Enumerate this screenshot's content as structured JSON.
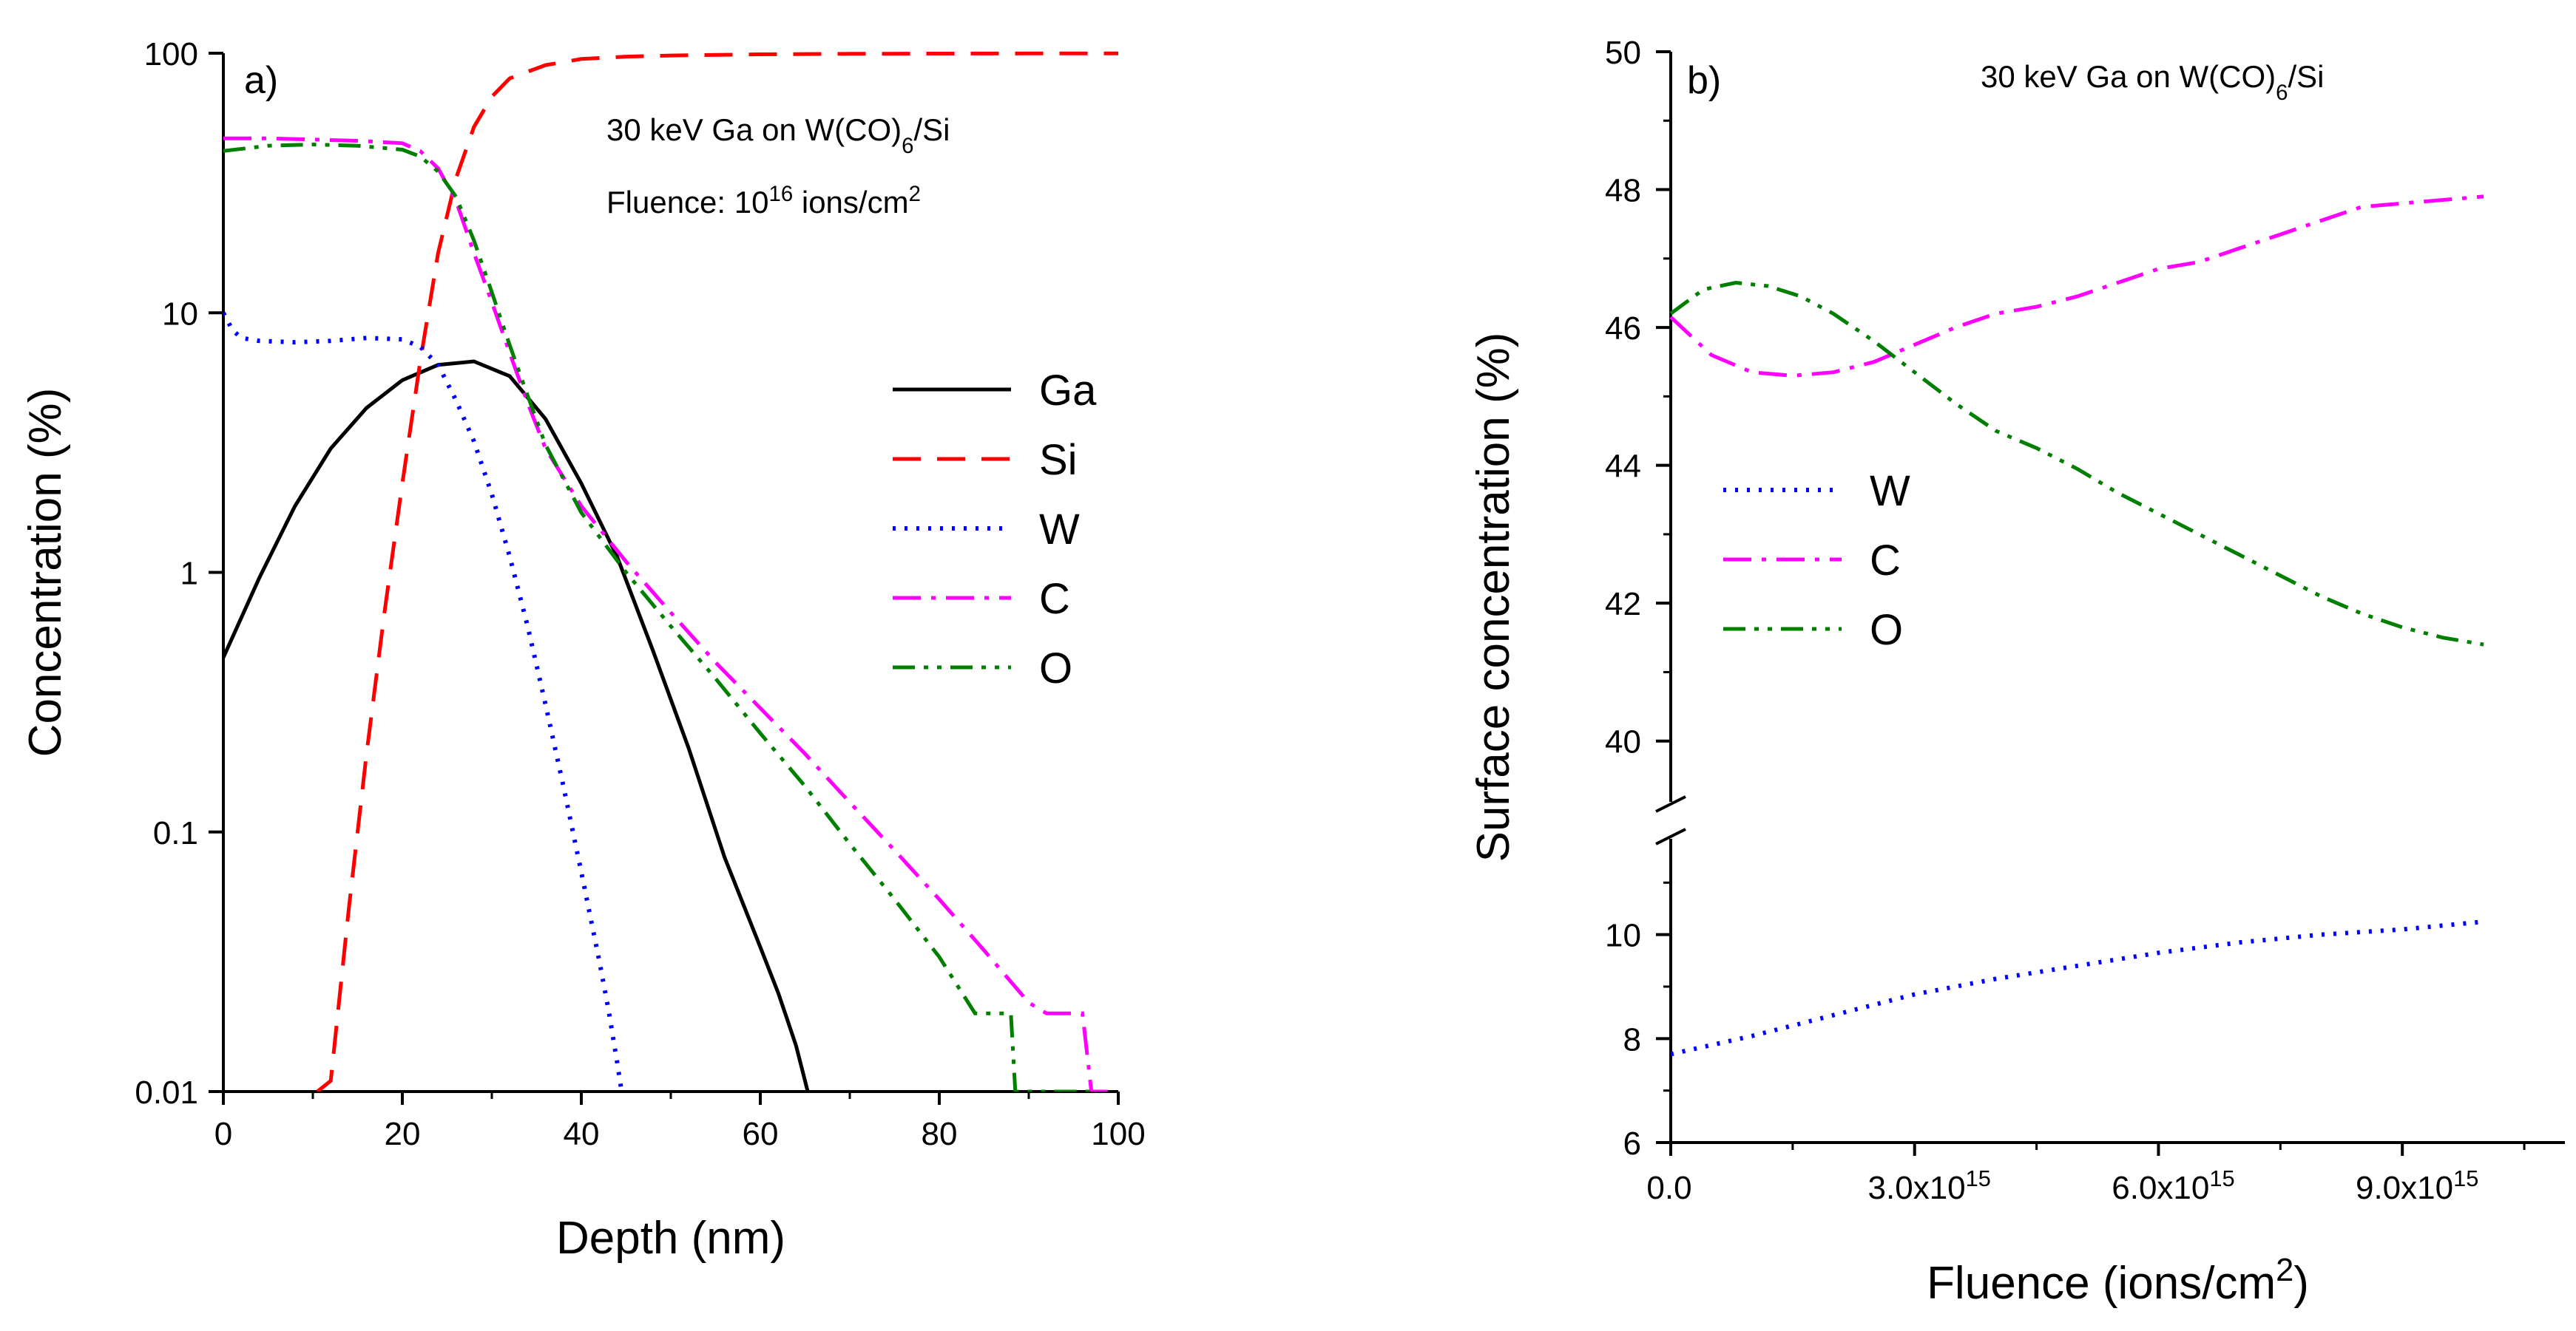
{
  "chart_data": [
    {
      "type": "line",
      "panel_label": "a)",
      "title": "",
      "annotations": [
        {
          "text": "30 keV Ga on W(CO)",
          "sub": "6",
          "tail": "/Si"
        },
        {
          "text": "Fluence: 10",
          "sup": "16",
          "tail": " ions/cm",
          "sup2": "2"
        }
      ],
      "xlabel": "Depth (nm)",
      "ylabel": "Concentration (%)",
      "xlim": [
        0,
        100
      ],
      "ylim": [
        0.01,
        100
      ],
      "yscale": "log",
      "xticks": [
        0,
        20,
        40,
        60,
        80,
        100
      ],
      "xtick_labels": [
        "0",
        "20",
        "40",
        "60",
        "80",
        "100"
      ],
      "yticks": [
        0.01,
        0.1,
        1,
        10,
        100
      ],
      "ytick_labels": [
        "0.01",
        "0.1",
        "1",
        "10",
        "100"
      ],
      "legend_position": "center-right",
      "series": [
        {
          "name": "Ga",
          "color": "#000000",
          "dash": "solid",
          "x": [
            0,
            4,
            8,
            12,
            16,
            20,
            24,
            28,
            32,
            36,
            40,
            44,
            48,
            52,
            56,
            60,
            62,
            63,
            64,
            65,
            65.3
          ],
          "y": [
            0.47,
            0.95,
            1.8,
            3.0,
            4.3,
            5.5,
            6.3,
            6.5,
            5.7,
            3.9,
            2.2,
            1.15,
            0.5,
            0.21,
            0.08,
            0.036,
            0.024,
            0.019,
            0.015,
            0.011,
            0.01
          ]
        },
        {
          "name": "Si",
          "color": "#ff0000",
          "dash": "dashed",
          "x": [
            10.5,
            12,
            14,
            16,
            18,
            20,
            22,
            24,
            26,
            28,
            30,
            32,
            36,
            40,
            45,
            50,
            60,
            70,
            80,
            90,
            100
          ],
          "y": [
            0.01,
            0.011,
            0.05,
            0.2,
            0.7,
            2.2,
            6.5,
            17,
            33,
            52,
            68,
            80,
            90,
            95,
            97,
            98,
            99,
            99.5,
            99.7,
            99.8,
            99.9
          ]
        },
        {
          "name": "W",
          "color": "#0000ff",
          "dash": "dotted",
          "x": [
            0,
            1,
            2,
            4,
            8,
            12,
            16,
            20,
            22,
            24,
            26,
            28,
            30,
            32,
            34,
            36,
            38,
            40,
            42,
            43,
            44,
            44.5
          ],
          "y": [
            10,
            8.6,
            8.0,
            7.8,
            7.7,
            7.8,
            8.0,
            7.9,
            7.4,
            6.3,
            4.6,
            3.2,
            2.0,
            1.15,
            0.62,
            0.31,
            0.15,
            0.07,
            0.032,
            0.021,
            0.013,
            0.01
          ]
        },
        {
          "name": "C",
          "color": "#ff00ff",
          "dash": "dashdot",
          "x": [
            0,
            5,
            10,
            15,
            20,
            22,
            24,
            26,
            28,
            30,
            32,
            34,
            36,
            40,
            45,
            50,
            55,
            60,
            65,
            70,
            75,
            80,
            85,
            90,
            92,
            96,
            97,
            99
          ],
          "y": [
            47,
            47,
            46.5,
            46,
            45,
            42,
            36,
            27,
            17,
            11,
            7,
            4.5,
            3.0,
            1.8,
            1.1,
            0.7,
            0.45,
            0.3,
            0.2,
            0.13,
            0.085,
            0.055,
            0.035,
            0.022,
            0.02,
            0.02,
            0.01,
            0.01
          ]
        },
        {
          "name": "O",
          "color": "#007f00",
          "dash": "dashdotdot",
          "x": [
            0,
            5,
            10,
            15,
            20,
            22,
            24,
            26,
            28,
            30,
            32,
            34,
            36,
            40,
            45,
            50,
            55,
            60,
            65,
            70,
            75,
            80,
            84,
            86,
            88,
            88.5,
            97
          ],
          "y": [
            42,
            44,
            44.5,
            44,
            42.5,
            40,
            35,
            28,
            19,
            12,
            7.5,
            4.8,
            3.1,
            1.7,
            1.0,
            0.62,
            0.39,
            0.24,
            0.15,
            0.09,
            0.055,
            0.033,
            0.02,
            0.02,
            0.02,
            0.01,
            0.01
          ]
        }
      ]
    },
    {
      "type": "line",
      "panel_label": "b)",
      "title": "",
      "annotations": [
        {
          "text": "30 keV Ga on W(CO)",
          "sub": "6",
          "tail": "/Si"
        }
      ],
      "xlabel": "Fluence (ions/cm",
      "xlabel_sup": "2",
      "xlabel_tail": ")",
      "ylabel": "Surface concentration (%)",
      "xlim": [
        0,
        1.1e+16
      ],
      "xticks": [
        0,
        3000000000000000.0,
        6000000000000000.0,
        9000000000000000.0
      ],
      "xtick_labels": [
        {
          "text": "0.0",
          "sup": ""
        },
        {
          "text": "3.0x10",
          "sup": "15"
        },
        {
          "text": "6.0x10",
          "sup": "15"
        },
        {
          "text": "9.0x10",
          "sup": "15"
        }
      ],
      "y_axis_break": true,
      "ylim_upper": [
        39,
        50
      ],
      "ylim_lower": [
        6,
        12
      ],
      "yticks_upper": [
        40,
        42,
        44,
        46,
        48,
        50
      ],
      "ytick_labels_upper": [
        "40",
        "42",
        "44",
        "46",
        "48",
        "50"
      ],
      "yticks_lower": [
        6,
        8,
        10
      ],
      "ytick_labels_lower": [
        "6",
        "8",
        "10"
      ],
      "legend_position": "middle-left",
      "series": [
        {
          "name": "W",
          "color": "#0000ff",
          "dash": "dotted",
          "x": [
            0,
            1000000000000000.0,
            2000000000000000.0,
            3000000000000000.0,
            4000000000000000.0,
            5000000000000000.0,
            6000000000000000.0,
            7000000000000000.0,
            8000000000000000.0,
            9000000000000000.0,
            1e+16
          ],
          "y": [
            7.7,
            8.05,
            8.45,
            8.85,
            9.15,
            9.4,
            9.65,
            9.85,
            10.0,
            10.1,
            10.25
          ]
        },
        {
          "name": "C",
          "color": "#ff00ff",
          "dash": "dashdot",
          "x": [
            0,
            500000000000000.0,
            1000000000000000.0,
            1500000000000000.0,
            2000000000000000.0,
            2500000000000000.0,
            3000000000000000.0,
            3500000000000000.0,
            4000000000000000.0,
            4500000000000000.0,
            5000000000000000.0,
            5500000000000000.0,
            6000000000000000.0,
            6500000000000000.0,
            7000000000000000.0,
            7500000000000000.0,
            8000000000000000.0,
            8500000000000000.0,
            9000000000000000.0,
            9500000000000000.0,
            1e+16
          ],
          "y": [
            46.15,
            45.6,
            45.35,
            45.3,
            45.35,
            45.5,
            45.75,
            46.0,
            46.2,
            46.3,
            46.45,
            46.65,
            46.85,
            46.95,
            47.15,
            47.35,
            47.55,
            47.75,
            47.8,
            47.85,
            47.9
          ]
        },
        {
          "name": "O",
          "color": "#007f00",
          "dash": "dashdotdot",
          "x": [
            0,
            400000000000000.0,
            800000000000000.0,
            1200000000000000.0,
            1600000000000000.0,
            2000000000000000.0,
            2500000000000000.0,
            3000000000000000.0,
            3500000000000000.0,
            4000000000000000.0,
            4500000000000000.0,
            5000000000000000.0,
            5500000000000000.0,
            6000000000000000.0,
            6500000000000000.0,
            7000000000000000.0,
            7500000000000000.0,
            8000000000000000.0,
            8500000000000000.0,
            9000000000000000.0,
            9500000000000000.0,
            1e+16
          ],
          "y": [
            46.2,
            46.55,
            46.65,
            46.6,
            46.45,
            46.2,
            45.8,
            45.35,
            44.9,
            44.5,
            44.25,
            43.95,
            43.6,
            43.3,
            43.0,
            42.7,
            42.4,
            42.1,
            41.85,
            41.65,
            41.5,
            41.4
          ]
        }
      ]
    }
  ]
}
